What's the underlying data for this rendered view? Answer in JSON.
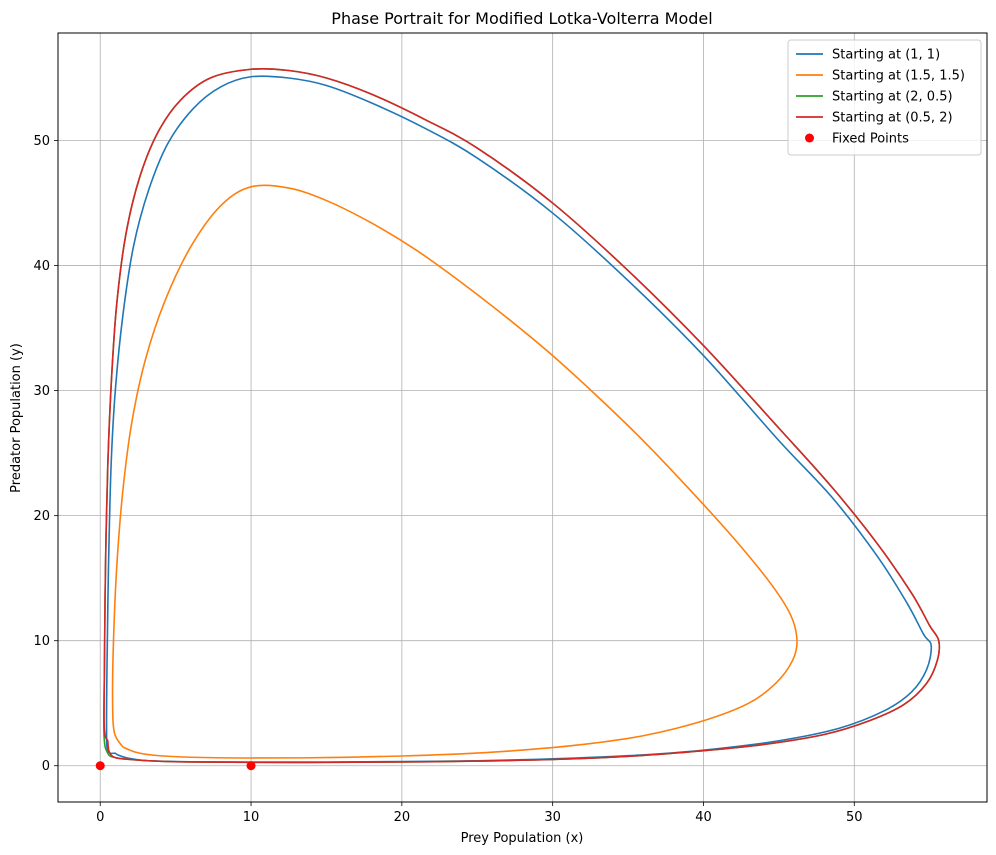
{
  "chart_data": {
    "type": "line",
    "title": "Phase Portrait for Modified Lotka-Volterra Model",
    "xlabel": "Prey Population (x)",
    "ylabel": "Predator Population (y)",
    "xlim": [
      -2.8,
      58.8
    ],
    "ylim": [
      -2.9,
      58.6
    ],
    "xticks": [
      0,
      10,
      20,
      30,
      40,
      50
    ],
    "yticks": [
      0,
      10,
      20,
      30,
      40,
      50
    ],
    "grid": true,
    "legend_position": "top-right",
    "series": [
      {
        "name": "Starting at (1, 1)",
        "color": "#1f77b4",
        "points": [
          [
            1,
            1
          ],
          [
            0.5,
            1.2
          ],
          [
            0.42,
            3
          ],
          [
            0.45,
            8
          ],
          [
            0.55,
            16
          ],
          [
            0.72,
            24
          ],
          [
            1,
            30
          ],
          [
            1.5,
            36
          ],
          [
            2.2,
            41.5
          ],
          [
            3.2,
            46
          ],
          [
            4.5,
            49.8
          ],
          [
            6.2,
            52.6
          ],
          [
            8,
            54.3
          ],
          [
            10,
            55.1
          ],
          [
            12.5,
            55
          ],
          [
            15,
            54.4
          ],
          [
            18,
            53
          ],
          [
            21.5,
            51
          ],
          [
            25,
            48.6
          ],
          [
            30,
            44.2
          ],
          [
            35,
            38.8
          ],
          [
            40,
            32.8
          ],
          [
            45,
            26
          ],
          [
            48.5,
            21.5
          ],
          [
            51.5,
            16.8
          ],
          [
            53.5,
            13
          ],
          [
            54.6,
            10.5
          ],
          [
            55.1,
            9.6
          ],
          [
            54.8,
            7.7
          ],
          [
            53.8,
            5.9
          ],
          [
            52,
            4.4
          ],
          [
            49,
            3
          ],
          [
            45,
            2
          ],
          [
            40,
            1.25
          ],
          [
            35,
            0.8
          ],
          [
            30,
            0.55
          ],
          [
            25,
            0.4
          ],
          [
            20,
            0.33
          ],
          [
            15,
            0.3
          ],
          [
            10,
            0.3
          ],
          [
            6,
            0.32
          ],
          [
            3,
            0.42
          ],
          [
            1.8,
            0.62
          ],
          [
            1.2,
            0.85
          ],
          [
            1,
            1
          ]
        ]
      },
      {
        "name": "Starting at (1.5, 1.5)",
        "color": "#ff7f0e",
        "points": [
          [
            1.5,
            1.5
          ],
          [
            0.95,
            2.6
          ],
          [
            0.82,
            5
          ],
          [
            0.88,
            10
          ],
          [
            1.1,
            16
          ],
          [
            1.5,
            22
          ],
          [
            2.1,
            27.5
          ],
          [
            3,
            32.5
          ],
          [
            4.3,
            37.2
          ],
          [
            6,
            41.5
          ],
          [
            8,
            44.8
          ],
          [
            10,
            46.3
          ],
          [
            12.5,
            46.2
          ],
          [
            15,
            45.2
          ],
          [
            18,
            43.4
          ],
          [
            21,
            41.2
          ],
          [
            24,
            38.6
          ],
          [
            27,
            35.8
          ],
          [
            30,
            32.8
          ],
          [
            33,
            29.5
          ],
          [
            36,
            26
          ],
          [
            39,
            22.2
          ],
          [
            42,
            18.2
          ],
          [
            44.5,
            14.5
          ],
          [
            45.8,
            12
          ],
          [
            46.2,
            10
          ],
          [
            45.9,
            8.4
          ],
          [
            44.8,
            6.6
          ],
          [
            43,
            5
          ],
          [
            40,
            3.6
          ],
          [
            36,
            2.4
          ],
          [
            32,
            1.7
          ],
          [
            28,
            1.25
          ],
          [
            24,
            0.95
          ],
          [
            20,
            0.78
          ],
          [
            15,
            0.65
          ],
          [
            10,
            0.62
          ],
          [
            6,
            0.68
          ],
          [
            3.5,
            0.85
          ],
          [
            2.3,
            1.1
          ],
          [
            1.5,
            1.5
          ]
        ]
      },
      {
        "name": "Starting at (2, 0.5)",
        "color": "#2ca02c",
        "points": [
          [
            2,
            0.5
          ],
          [
            1,
            0.65
          ],
          [
            0.5,
            1
          ],
          [
            0.25,
            2.5
          ],
          [
            0.28,
            8
          ],
          [
            0.35,
            16
          ],
          [
            0.5,
            24
          ],
          [
            0.75,
            31
          ],
          [
            1.1,
            37
          ],
          [
            1.7,
            42.5
          ],
          [
            2.6,
            47
          ],
          [
            3.8,
            50.6
          ],
          [
            5.3,
            53.2
          ],
          [
            7.3,
            55
          ],
          [
            10,
            55.7
          ],
          [
            12.5,
            55.6
          ],
          [
            15,
            55
          ],
          [
            18,
            53.7
          ],
          [
            21.5,
            51.7
          ],
          [
            25,
            49.4
          ],
          [
            30,
            45
          ],
          [
            35,
            39.6
          ],
          [
            40,
            33.6
          ],
          [
            45,
            27
          ],
          [
            48.5,
            22.3
          ],
          [
            51.5,
            17.8
          ],
          [
            53.8,
            13.8
          ],
          [
            55,
            11.2
          ],
          [
            55.6,
            10
          ],
          [
            55.5,
            8.4
          ],
          [
            54.8,
            6.6
          ],
          [
            53.3,
            4.9
          ],
          [
            51,
            3.6
          ],
          [
            48,
            2.5
          ],
          [
            44,
            1.7
          ],
          [
            40,
            1.2
          ],
          [
            35,
            0.75
          ],
          [
            30,
            0.5
          ],
          [
            25,
            0.37
          ],
          [
            20,
            0.3
          ],
          [
            15,
            0.27
          ],
          [
            10,
            0.27
          ],
          [
            6,
            0.3
          ],
          [
            3.5,
            0.38
          ],
          [
            2,
            0.5
          ]
        ]
      },
      {
        "name": "Starting at (0.5, 2)",
        "color": "#d62728",
        "points": [
          [
            0.5,
            2
          ],
          [
            0.27,
            3
          ],
          [
            0.28,
            8
          ],
          [
            0.35,
            16
          ],
          [
            0.5,
            24
          ],
          [
            0.75,
            31
          ],
          [
            1.1,
            37
          ],
          [
            1.7,
            42.5
          ],
          [
            2.6,
            47
          ],
          [
            3.8,
            50.6
          ],
          [
            5.3,
            53.2
          ],
          [
            7.3,
            55
          ],
          [
            10,
            55.7
          ],
          [
            12.5,
            55.6
          ],
          [
            15,
            55
          ],
          [
            18,
            53.7
          ],
          [
            21.5,
            51.7
          ],
          [
            25,
            49.4
          ],
          [
            30,
            45
          ],
          [
            35,
            39.6
          ],
          [
            40,
            33.6
          ],
          [
            45,
            27
          ],
          [
            48.5,
            22.3
          ],
          [
            51.5,
            17.8
          ],
          [
            53.8,
            13.8
          ],
          [
            55,
            11.2
          ],
          [
            55.6,
            10
          ],
          [
            55.5,
            8.4
          ],
          [
            54.8,
            6.6
          ],
          [
            53.3,
            4.9
          ],
          [
            51,
            3.6
          ],
          [
            48,
            2.5
          ],
          [
            44,
            1.7
          ],
          [
            40,
            1.2
          ],
          [
            35,
            0.75
          ],
          [
            30,
            0.5
          ],
          [
            25,
            0.37
          ],
          [
            20,
            0.3
          ],
          [
            15,
            0.27
          ],
          [
            10,
            0.27
          ],
          [
            6,
            0.3
          ],
          [
            3.5,
            0.38
          ],
          [
            2,
            0.5
          ],
          [
            1,
            0.65
          ],
          [
            0.6,
            1.1
          ],
          [
            0.5,
            2
          ]
        ]
      }
    ],
    "fixed_points": {
      "name": "Fixed Points",
      "color": "#ff0000",
      "points": [
        [
          0,
          0
        ],
        [
          10,
          0
        ]
      ]
    }
  }
}
